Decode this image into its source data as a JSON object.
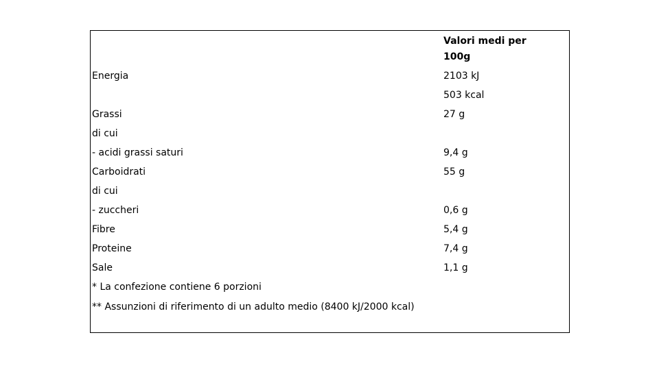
{
  "table": {
    "header": "Valori medi per 100g",
    "rows": [
      {
        "label": "Energia",
        "value": "2103 kJ"
      },
      {
        "value": "503 kcal"
      },
      {
        "label": "Grassi",
        "value": "27 g"
      },
      {
        "label": "di cui"
      },
      {
        "label": "- acidi grassi saturi",
        "value": "9,4 g"
      },
      {
        "label": "Carboidrati",
        "value": "55 g"
      },
      {
        "label": "di cui"
      },
      {
        "label": "- zuccheri",
        "value": "0,6 g"
      },
      {
        "label": "Fibre",
        "value": "5,4 g"
      },
      {
        "label": "Proteine",
        "value": "7,4 g"
      },
      {
        "label": "Sale",
        "value": "1,1 g"
      }
    ],
    "footnotes": [
      "* La confezione contiene 6 porzioni",
      "** Assunzioni di riferimento di un adulto medio (8400 kJ/2000 kcal)"
    ]
  }
}
